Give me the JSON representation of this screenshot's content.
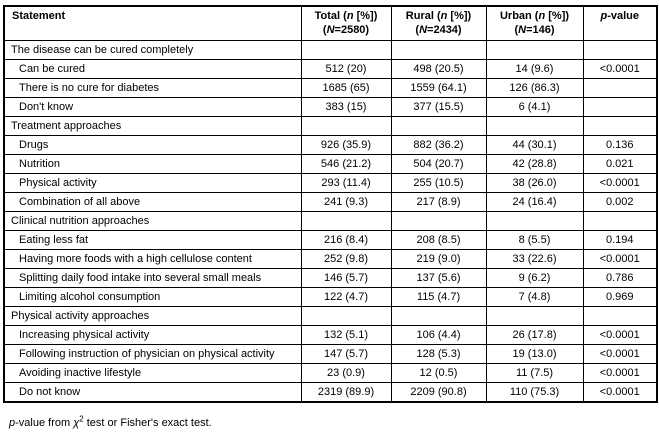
{
  "table": {
    "border_color": "#000000",
    "text_color": "#000000",
    "background_color": "#ffffff",
    "header": {
      "statement": [
        {
          "t": "Statement"
        }
      ],
      "total": {
        "line1": [
          {
            "t": "Total ("
          },
          {
            "t": "n",
            "i": true
          },
          {
            "t": " [%])"
          }
        ],
        "line2": [
          {
            "t": "("
          },
          {
            "t": "N",
            "i": true
          },
          {
            "t": "=2580)"
          }
        ]
      },
      "rural": {
        "line1": [
          {
            "t": "Rural ("
          },
          {
            "t": "n",
            "i": true
          },
          {
            "t": " [%])"
          }
        ],
        "line2": [
          {
            "t": "("
          },
          {
            "t": "N",
            "i": true
          },
          {
            "t": "=2434)"
          }
        ]
      },
      "urban": {
        "line1": [
          {
            "t": "Urban ("
          },
          {
            "t": "n",
            "i": true
          },
          {
            "t": " [%])"
          }
        ],
        "line2": [
          {
            "t": "("
          },
          {
            "t": "N",
            "i": true
          },
          {
            "t": "=146)"
          }
        ]
      },
      "pvalue": [
        {
          "t": "p",
          "i": true
        },
        {
          "t": "-value"
        }
      ]
    },
    "rows": [
      {
        "section": true,
        "statement": "The disease can be cured completely",
        "total": "",
        "rural": "",
        "urban": "",
        "p": ""
      },
      {
        "section": false,
        "statement": "Can be cured",
        "total": "512 (20)",
        "rural": "498 (20.5)",
        "urban": "14 (9.6)",
        "p": "<0.0001"
      },
      {
        "section": false,
        "statement": "There is no cure for diabetes",
        "total": "1685 (65)",
        "rural": "1559 (64.1)",
        "urban": "126 (86.3)",
        "p": ""
      },
      {
        "section": false,
        "statement": "Don't know",
        "total": "383 (15)",
        "rural": "377 (15.5)",
        "urban": "6 (4.1)",
        "p": ""
      },
      {
        "section": true,
        "statement": "Treatment approaches",
        "total": "",
        "rural": "",
        "urban": "",
        "p": ""
      },
      {
        "section": false,
        "statement": "Drugs",
        "total": "926 (35.9)",
        "rural": "882 (36.2)",
        "urban": "44 (30.1)",
        "p": "0.136"
      },
      {
        "section": false,
        "statement": "Nutrition",
        "total": "546 (21.2)",
        "rural": "504 (20.7)",
        "urban": "42 (28.8)",
        "p": "0.021"
      },
      {
        "section": false,
        "statement": "Physical activity",
        "total": "293 (11.4)",
        "rural": "255 (10.5)",
        "urban": "38 (26.0)",
        "p": "<0.0001"
      },
      {
        "section": false,
        "statement": "Combination of all above",
        "total": "241 (9.3)",
        "rural": "217 (8.9)",
        "urban": "24 (16.4)",
        "p": "0.002"
      },
      {
        "section": true,
        "statement": "Clinical nutrition approaches",
        "total": "",
        "rural": "",
        "urban": "",
        "p": ""
      },
      {
        "section": false,
        "statement": "Eating less fat",
        "total": "216 (8.4)",
        "rural": "208 (8.5)",
        "urban": "8 (5.5)",
        "p": "0.194"
      },
      {
        "section": false,
        "statement": "Having more foods with a high cellulose content",
        "total": "252 (9.8)",
        "rural": "219 (9.0)",
        "urban": "33 (22.6)",
        "p": "<0.0001"
      },
      {
        "section": false,
        "statement": "Splitting daily food intake into several small meals",
        "total": "146 (5.7)",
        "rural": "137 (5.6)",
        "urban": "9 (6.2)",
        "p": "0.786"
      },
      {
        "section": false,
        "statement": "Limiting alcohol consumption",
        "total": "122 (4.7)",
        "rural": "115 (4.7)",
        "urban": "7 (4.8)",
        "p": "0.969"
      },
      {
        "section": true,
        "statement": "Physical activity approaches",
        "total": "",
        "rural": "",
        "urban": "",
        "p": ""
      },
      {
        "section": false,
        "statement": "Increasing physical activity",
        "total": "132 (5.1)",
        "rural": "106 (4.4)",
        "urban": "26 (17.8)",
        "p": "<0.0001"
      },
      {
        "section": false,
        "statement": "Following instruction of physician on physical activity",
        "total": "147 (5.7)",
        "rural": "128 (5.3)",
        "urban": "19 (13.0)",
        "p": "<0.0001"
      },
      {
        "section": false,
        "statement": "Avoiding inactive lifestyle",
        "total": "23 (0.9)",
        "rural": "12 (0.5)",
        "urban": "11 (7.5)",
        "p": "<0.0001"
      },
      {
        "section": false,
        "statement": "Do not know",
        "total": "2319 (89.9)",
        "rural": "2209 (90.8)",
        "urban": "110 (75.3)",
        "p": "<0.0001"
      }
    ]
  },
  "footnote": [
    {
      "t": "p",
      "i": true
    },
    {
      "t": "-value from "
    },
    {
      "t": "χ",
      "i": true
    },
    {
      "t": "2",
      "sup": true
    },
    {
      "t": " test or Fisher's exact test."
    }
  ]
}
